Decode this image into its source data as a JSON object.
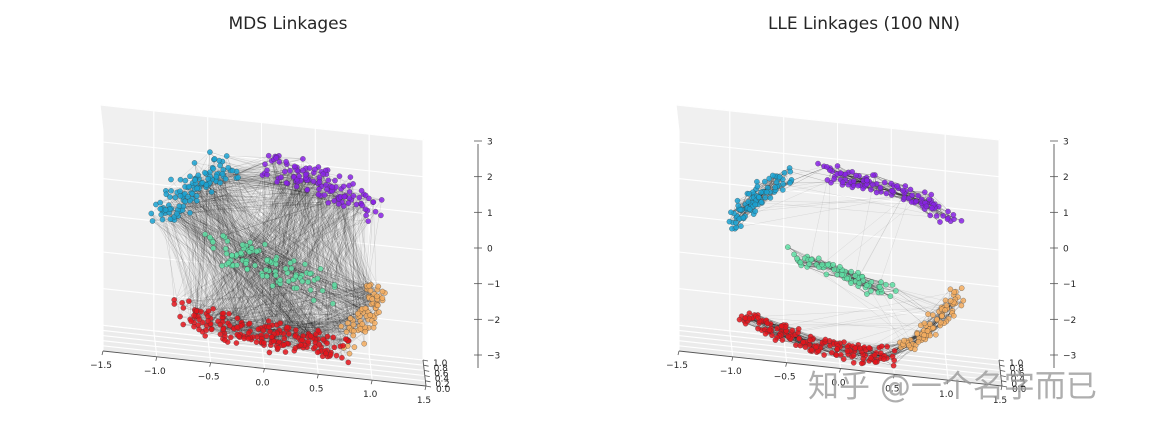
{
  "colors": {
    "cyan": "#1aa3d4",
    "purple": "#8a22e6",
    "green": "#5fdfa5",
    "orange": "#f4ad5f",
    "red": "#e5141b",
    "pane_left": "#e6e6e6",
    "pane_right": "#f0f0f0",
    "pane_floor": "#ebebeb",
    "link": "#000000"
  },
  "watermark": "知乎 @一个名字而已",
  "chart_data": [
    {
      "type": "scatter",
      "projection": "3d",
      "title": "MDS Linkages",
      "xlabel": "",
      "ylabel": "",
      "zlabel": "",
      "xlim": [
        -1.5,
        1.5
      ],
      "ylim": [
        0.0,
        1.0
      ],
      "zlim": [
        -3,
        3
      ],
      "xticks": [
        "−1.5",
        "−1.0",
        "−0.5",
        "0.0",
        "0.5",
        "1.0",
        "1.5"
      ],
      "yticks": [
        "0.0",
        "0.2",
        "0.4",
        "0.6",
        "0.8",
        "1.0"
      ],
      "zticks": [
        "−3",
        "−2",
        "−1",
        "0",
        "1",
        "2",
        "3"
      ],
      "grid": true,
      "link_density": "dense",
      "series": [
        {
          "color_key": "cyan",
          "curve": [
            [
              -0.95,
              0.25,
              0.6
            ],
            [
              -0.65,
              0.45,
              1.5
            ],
            [
              -0.35,
              0.6,
              2.0
            ]
          ],
          "count": 110,
          "spread": 0.12
        },
        {
          "color_key": "purple",
          "curve": [
            [
              0.05,
              0.65,
              2.1
            ],
            [
              0.55,
              0.7,
              1.9
            ],
            [
              1.05,
              0.55,
              1.2
            ]
          ],
          "count": 120,
          "spread": 0.12
        },
        {
          "color_key": "green",
          "curve": [
            [
              -0.45,
              0.5,
              0.0
            ],
            [
              0.0,
              0.45,
              -0.5
            ],
            [
              0.6,
              0.45,
              -0.9
            ]
          ],
          "count": 90,
          "spread": 0.14
        },
        {
          "color_key": "orange",
          "curve": [
            [
              1.05,
              0.5,
              -0.8
            ],
            [
              1.0,
              0.45,
              -1.7
            ],
            [
              0.75,
              0.4,
              -2.4
            ]
          ],
          "count": 80,
          "spread": 0.09
        },
        {
          "color_key": "red",
          "curve": [
            [
              -0.75,
              0.3,
              -1.9
            ],
            [
              0.0,
              0.15,
              -2.4
            ],
            [
              0.75,
              0.2,
              -2.3
            ]
          ],
          "count": 200,
          "spread": 0.12
        }
      ]
    },
    {
      "type": "scatter",
      "projection": "3d",
      "title": "LLE Linkages (100 NN)",
      "xlabel": "",
      "ylabel": "",
      "zlabel": "",
      "xlim": [
        -1.5,
        1.5
      ],
      "ylim": [
        0.0,
        1.0
      ],
      "zlim": [
        -3,
        3
      ],
      "xticks": [
        "−1.5",
        "−1.0",
        "−0.5",
        "0.0",
        "0.5",
        "1.0",
        "1.5"
      ],
      "yticks": [
        "0.0",
        "0.2",
        "0.4",
        "0.6",
        "0.8",
        "1.0"
      ],
      "zticks": [
        "−3",
        "−2",
        "−1",
        "0",
        "1",
        "2",
        "3"
      ],
      "grid": true,
      "link_density": "local",
      "series": [
        {
          "color_key": "cyan",
          "curve": [
            [
              -1.0,
              0.4,
              0.3
            ],
            [
              -0.75,
              0.5,
              1.2
            ],
            [
              -0.45,
              0.6,
              1.8
            ]
          ],
          "count": 90,
          "spread": 0.07
        },
        {
          "color_key": "purple",
          "curve": [
            [
              -0.15,
              0.65,
              1.8
            ],
            [
              0.5,
              0.7,
              1.7
            ],
            [
              1.1,
              0.6,
              1.0
            ]
          ],
          "count": 110,
          "spread": 0.07
        },
        {
          "color_key": "green",
          "curve": [
            [
              -0.45,
              0.5,
              -0.3
            ],
            [
              0.0,
              0.45,
              -0.8
            ],
            [
              0.5,
              0.45,
              -1.1
            ]
          ],
          "count": 70,
          "spread": 0.06
        },
        {
          "color_key": "orange",
          "curve": [
            [
              1.1,
              0.5,
              -1.0
            ],
            [
              0.9,
              0.45,
              -1.9
            ],
            [
              0.55,
              0.4,
              -2.6
            ]
          ],
          "count": 80,
          "spread": 0.06
        },
        {
          "color_key": "red",
          "curve": [
            [
              -0.9,
              0.3,
              -2.0
            ],
            [
              -0.2,
              0.15,
              -2.8
            ],
            [
              0.5,
              0.25,
              -2.7
            ]
          ],
          "count": 160,
          "spread": 0.07
        }
      ]
    }
  ]
}
